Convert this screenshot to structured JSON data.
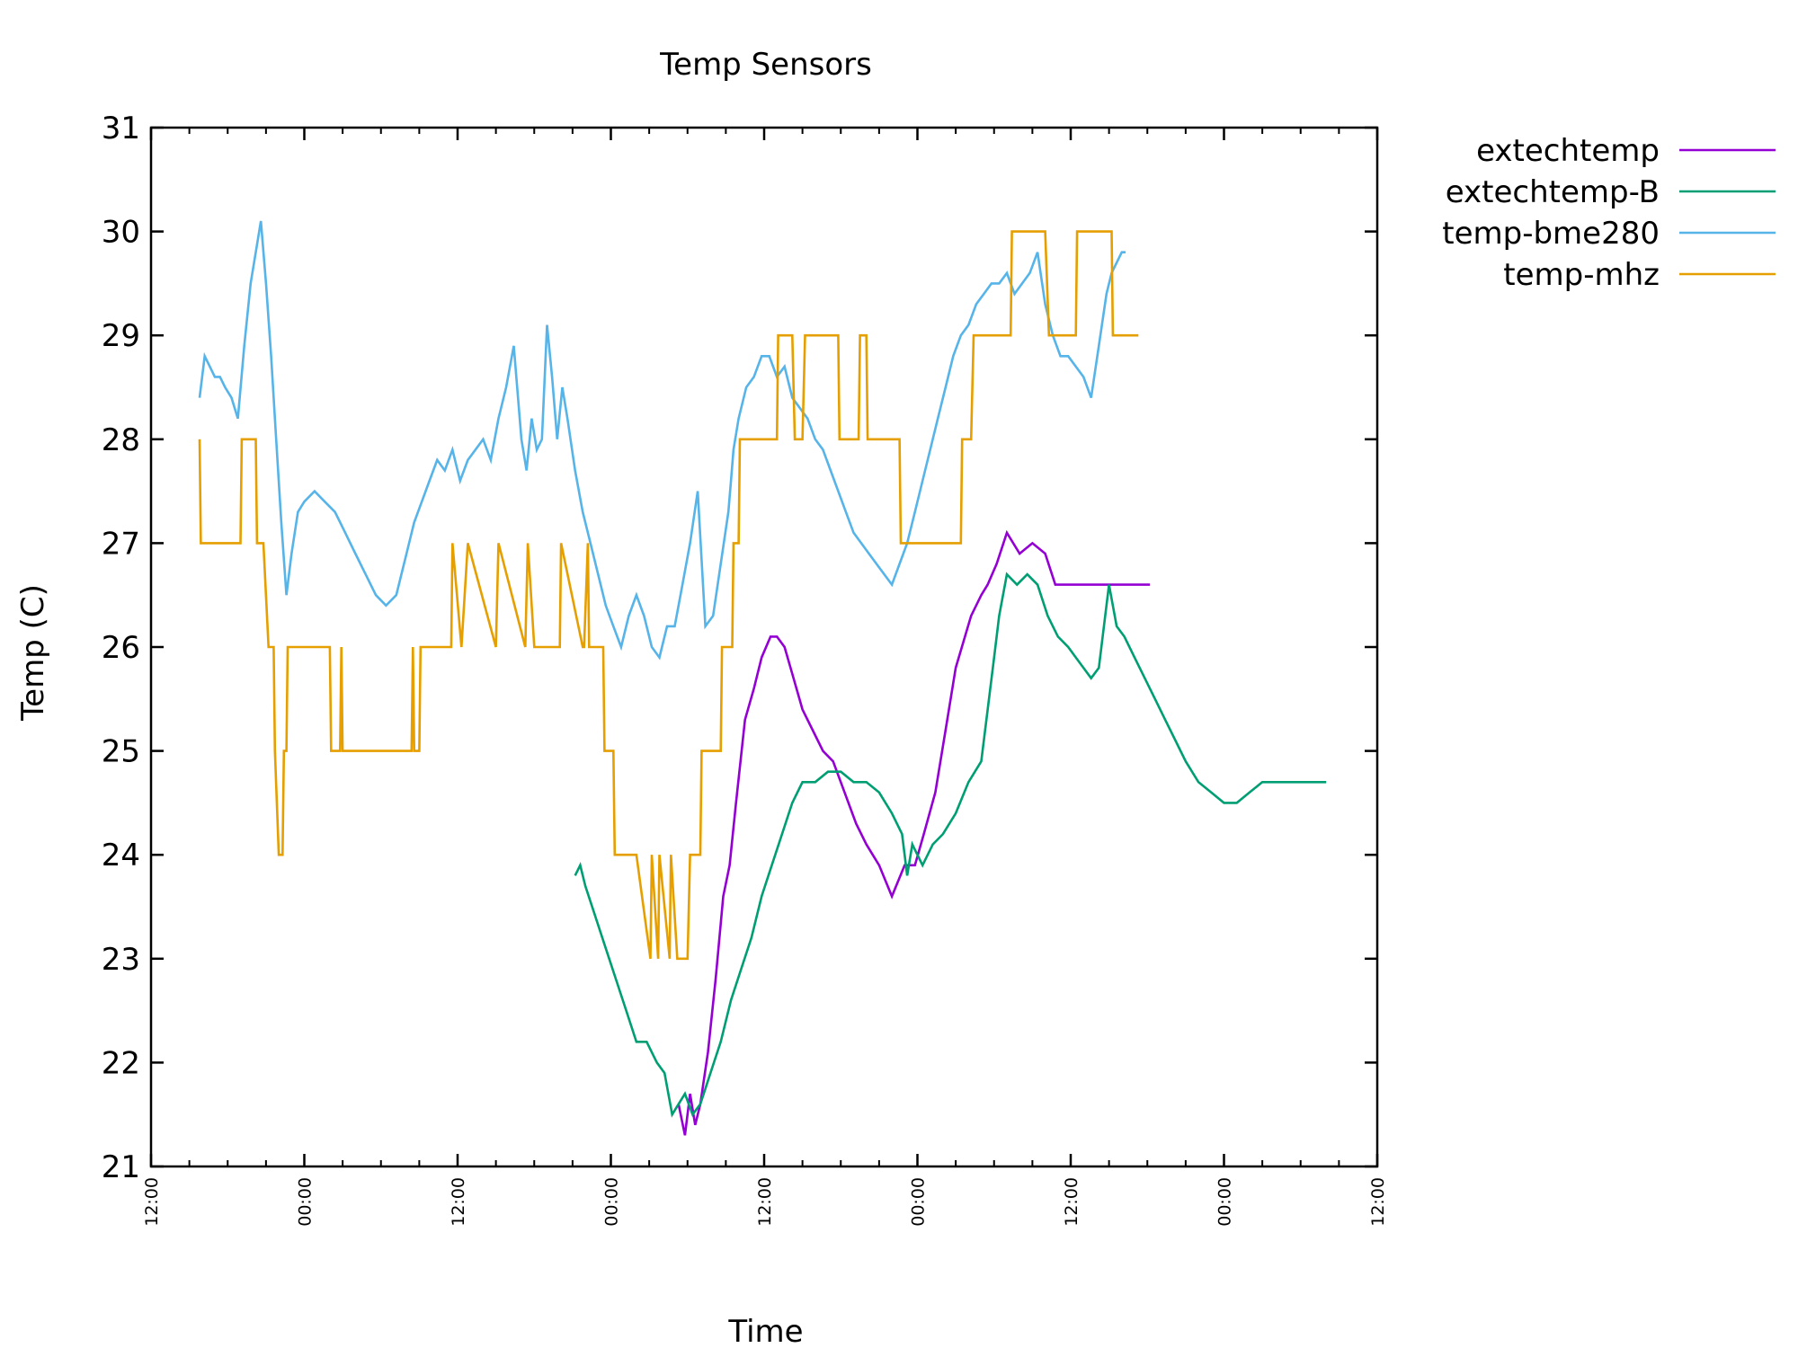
{
  "chart_data": {
    "type": "line",
    "title": "Temp Sensors",
    "xlabel": "Time",
    "ylabel": "Temp (C)",
    "xlim_hours": [
      0,
      96
    ],
    "ylim": [
      21,
      31
    ],
    "y_ticks": [
      "21",
      "22",
      "23",
      "24",
      "25",
      "26",
      "27",
      "28",
      "29",
      "30",
      "31"
    ],
    "x_tick_labels": [
      "12:00",
      "00:00",
      "12:00",
      "00:00",
      "12:00",
      "00:00",
      "12:00",
      "00:00",
      "12:00"
    ],
    "x_tick_hours": [
      0,
      12,
      24,
      36,
      48,
      60,
      72,
      84,
      96
    ],
    "minor_x_tick_step_hours": 3,
    "grid": false,
    "legend_position": "outside-top-right",
    "series": [
      {
        "name": "extechtemp",
        "color": "#9400d3",
        "x_hours": [
          41.3,
          41.8,
          42.2,
          42.6,
          43.0,
          43.6,
          44.2,
          44.8,
          45.3,
          45.8,
          46.5,
          47.2,
          47.8,
          48.5,
          49.0,
          49.6,
          50.3,
          51.0,
          51.8,
          52.6,
          53.4,
          54.3,
          55.2,
          56.0,
          57.0,
          58.0,
          59.0,
          59.8,
          60.5,
          61.4,
          62.2,
          63.0,
          64.2,
          65.0,
          65.5,
          66.2,
          67.0,
          68.0,
          69.0,
          70.0,
          70.8,
          71.6,
          72.4,
          73.3,
          74.2,
          75.0,
          75.6,
          76.3,
          77.0,
          77.6,
          78.2
        ],
        "y": [
          21.6,
          21.3,
          21.7,
          21.4,
          21.6,
          22.1,
          22.8,
          23.6,
          23.9,
          24.5,
          25.3,
          25.6,
          25.9,
          26.1,
          26.1,
          26.0,
          25.7,
          25.4,
          25.2,
          25.0,
          24.9,
          24.6,
          24.3,
          24.1,
          23.9,
          23.6,
          23.9,
          23.9,
          24.2,
          24.6,
          25.2,
          25.8,
          26.3,
          26.5,
          26.6,
          26.8,
          27.1,
          26.9,
          27.0,
          26.9,
          26.6,
          26.6,
          26.6,
          26.6,
          26.6,
          26.6,
          26.6,
          26.6,
          26.6,
          26.6,
          26.6
        ]
      },
      {
        "name": "extechtemp-B",
        "color": "#009e73",
        "x_hours": [
          33.2,
          33.6,
          34.0,
          34.8,
          35.6,
          36.4,
          37.2,
          38.0,
          38.8,
          39.6,
          40.2,
          40.8,
          41.3,
          41.8,
          42.4,
          43.0,
          43.8,
          44.6,
          45.4,
          46.2,
          47.0,
          47.8,
          48.6,
          49.4,
          50.2,
          51.0,
          52.0,
          53.0,
          54.0,
          55.0,
          56.0,
          57.0,
          58.0,
          58.8,
          59.2,
          59.6,
          60.4,
          61.2,
          62.0,
          63.0,
          64.0,
          65.0,
          66.0,
          66.4,
          67.0,
          67.8,
          68.6,
          69.4,
          70.2,
          71.0,
          71.8,
          72.4,
          73.0,
          73.6,
          74.2,
          75.0,
          75.6,
          76.2,
          77.0,
          77.8,
          78.6,
          79.4,
          80.2,
          81.0,
          82.0,
          83.0,
          84.0,
          85.0,
          86.0,
          87.0,
          88.0,
          89.0,
          90.0,
          91.0,
          92.0
        ],
        "y": [
          23.8,
          23.9,
          23.7,
          23.4,
          23.1,
          22.8,
          22.5,
          22.2,
          22.2,
          22.0,
          21.9,
          21.5,
          21.6,
          21.7,
          21.5,
          21.6,
          21.9,
          22.2,
          22.6,
          22.9,
          23.2,
          23.6,
          23.9,
          24.2,
          24.5,
          24.7,
          24.7,
          24.8,
          24.8,
          24.7,
          24.7,
          24.6,
          24.4,
          24.2,
          23.8,
          24.1,
          23.9,
          24.1,
          24.2,
          24.4,
          24.7,
          24.9,
          25.9,
          26.3,
          26.7,
          26.6,
          26.7,
          26.6,
          26.3,
          26.1,
          26.0,
          25.9,
          25.8,
          25.7,
          25.8,
          26.6,
          26.2,
          26.1,
          25.9,
          25.7,
          25.5,
          25.3,
          25.1,
          24.9,
          24.7,
          24.6,
          24.5,
          24.5,
          24.6,
          24.7,
          24.7,
          24.7,
          24.7,
          24.7,
          24.7
        ]
      },
      {
        "name": "temp-bme280",
        "color": "#56b4e9",
        "x_hours": [
          3.8,
          4.2,
          4.6,
          5.0,
          5.4,
          5.8,
          6.3,
          6.8,
          7.3,
          7.8,
          8.2,
          8.6,
          9.0,
          9.4,
          9.8,
          10.2,
          10.6,
          11.0,
          11.5,
          12.0,
          12.8,
          13.6,
          14.4,
          15.2,
          16.0,
          16.8,
          17.6,
          18.4,
          19.2,
          20.0,
          20.6,
          21.2,
          21.8,
          22.4,
          23.0,
          23.6,
          24.2,
          24.8,
          25.4,
          26.0,
          26.6,
          27.2,
          27.8,
          28.4,
          29.0,
          29.4,
          29.8,
          30.2,
          30.6,
          31.0,
          31.4,
          31.8,
          32.2,
          32.6,
          33.2,
          33.8,
          34.4,
          35.0,
          35.6,
          36.2,
          36.8,
          37.4,
          38.0,
          38.6,
          39.2,
          39.8,
          40.4,
          41.0,
          41.6,
          42.2,
          42.8,
          43.4,
          44.0,
          44.6,
          45.2,
          45.4,
          45.6,
          46.0,
          46.6,
          47.2,
          47.8,
          48.4,
          49.0,
          49.6,
          50.2,
          50.8,
          51.4,
          52.0,
          52.6,
          53.2,
          53.8,
          54.4,
          55.0,
          55.6,
          56.2,
          56.8,
          57.4,
          58.0,
          58.6,
          59.2,
          59.8,
          60.4,
          61.0,
          61.6,
          62.2,
          62.8,
          63.4,
          64.0,
          64.6,
          65.2,
          65.8,
          66.4,
          67.0,
          67.6,
          68.2,
          68.8,
          69.4,
          70.0,
          70.6,
          71.2,
          71.8,
          72.4,
          73.0,
          73.6,
          74.2,
          74.8,
          75.2,
          75.6,
          76.0,
          76.3
        ],
        "y": [
          28.4,
          28.8,
          28.7,
          28.6,
          28.6,
          28.5,
          28.4,
          28.2,
          28.9,
          29.5,
          29.8,
          30.1,
          29.5,
          28.8,
          28.0,
          27.2,
          26.5,
          26.9,
          27.3,
          27.4,
          27.5,
          27.4,
          27.3,
          27.1,
          26.9,
          26.7,
          26.5,
          26.4,
          26.5,
          26.9,
          27.2,
          27.4,
          27.6,
          27.8,
          27.7,
          27.9,
          27.6,
          27.8,
          27.9,
          28.0,
          27.8,
          28.2,
          28.5,
          28.9,
          28.0,
          27.7,
          28.2,
          27.9,
          28.0,
          29.1,
          28.6,
          28.0,
          28.5,
          28.2,
          27.7,
          27.3,
          27.0,
          26.7,
          26.4,
          26.2,
          26.0,
          26.3,
          26.5,
          26.3,
          26.0,
          25.9,
          26.2,
          26.2,
          26.6,
          27.0,
          27.5,
          26.2,
          26.3,
          26.8,
          27.3,
          27.6,
          27.9,
          28.2,
          28.5,
          28.6,
          28.8,
          28.8,
          28.6,
          28.7,
          28.4,
          28.3,
          28.2,
          28.0,
          27.9,
          27.7,
          27.5,
          27.3,
          27.1,
          27.0,
          26.9,
          26.8,
          26.7,
          26.6,
          26.8,
          27.0,
          27.3,
          27.6,
          27.9,
          28.2,
          28.5,
          28.8,
          29.0,
          29.1,
          29.3,
          29.4,
          29.5,
          29.5,
          29.6,
          29.4,
          29.5,
          29.6,
          29.8,
          29.3,
          29.0,
          28.8,
          28.8,
          28.7,
          28.6,
          28.4,
          28.9,
          29.4,
          29.6,
          29.7,
          29.8,
          29.8
        ]
      },
      {
        "name": "temp-mhz",
        "color": "#e69f00",
        "x_hours": [
          3.8,
          3.9,
          7.0,
          7.1,
          8.2,
          8.3,
          8.8,
          9.2,
          9.6,
          9.7,
          10.0,
          10.3,
          10.4,
          10.6,
          10.7,
          11.0,
          11.1,
          14.0,
          14.1,
          14.8,
          14.9,
          15.0,
          20.4,
          20.5,
          20.6,
          21.0,
          21.1,
          23.5,
          23.6,
          24.3,
          24.8,
          27.0,
          27.2,
          29.3,
          29.5,
          30.0,
          30.3,
          32.0,
          32.1,
          33.8,
          33.9,
          34.2,
          34.3,
          35.4,
          35.5,
          36.2,
          36.3,
          37.0,
          37.4,
          38.0,
          39.1,
          39.2,
          39.7,
          39.8,
          40.6,
          40.7,
          41.2,
          42.0,
          42.2,
          42.3,
          43.0,
          43.1,
          44.6,
          44.7,
          45.5,
          45.6,
          46.0,
          46.1,
          46.6,
          46.7,
          49.0,
          49.1,
          50.2,
          50.4,
          51.0,
          51.2,
          53.8,
          53.9,
          55.4,
          55.5,
          56.0,
          56.1,
          57.2,
          57.3,
          58.6,
          58.7,
          59.6,
          59.7,
          61.6,
          61.7,
          63.4,
          63.5,
          64.2,
          64.4,
          66.0,
          66.2,
          67.3,
          67.4,
          70.0,
          70.3,
          72.4,
          72.5,
          75.2,
          75.3,
          77.3
        ],
        "y": [
          28,
          27,
          27,
          28,
          28,
          27,
          27,
          26,
          26,
          25,
          24,
          24,
          25,
          25,
          26,
          26,
          26,
          26,
          25,
          25,
          26,
          25,
          25,
          26,
          25,
          25,
          26,
          26,
          27,
          26,
          27,
          26,
          27,
          26,
          27,
          26,
          26,
          26,
          27,
          26,
          26,
          27,
          26,
          26,
          25,
          25,
          24,
          24,
          24,
          24,
          23,
          24,
          23,
          24,
          23,
          24,
          23,
          23,
          24,
          24,
          24,
          25,
          25,
          26,
          26,
          27,
          27,
          28,
          28,
          28,
          28,
          29,
          29,
          28,
          28,
          29,
          29,
          28,
          28,
          29,
          29,
          28,
          28,
          28,
          28,
          27,
          27,
          27,
          27,
          27,
          27,
          28,
          28,
          29,
          29,
          29,
          29,
          30,
          30,
          29,
          29,
          30,
          30,
          29,
          29
        ]
      }
    ]
  }
}
